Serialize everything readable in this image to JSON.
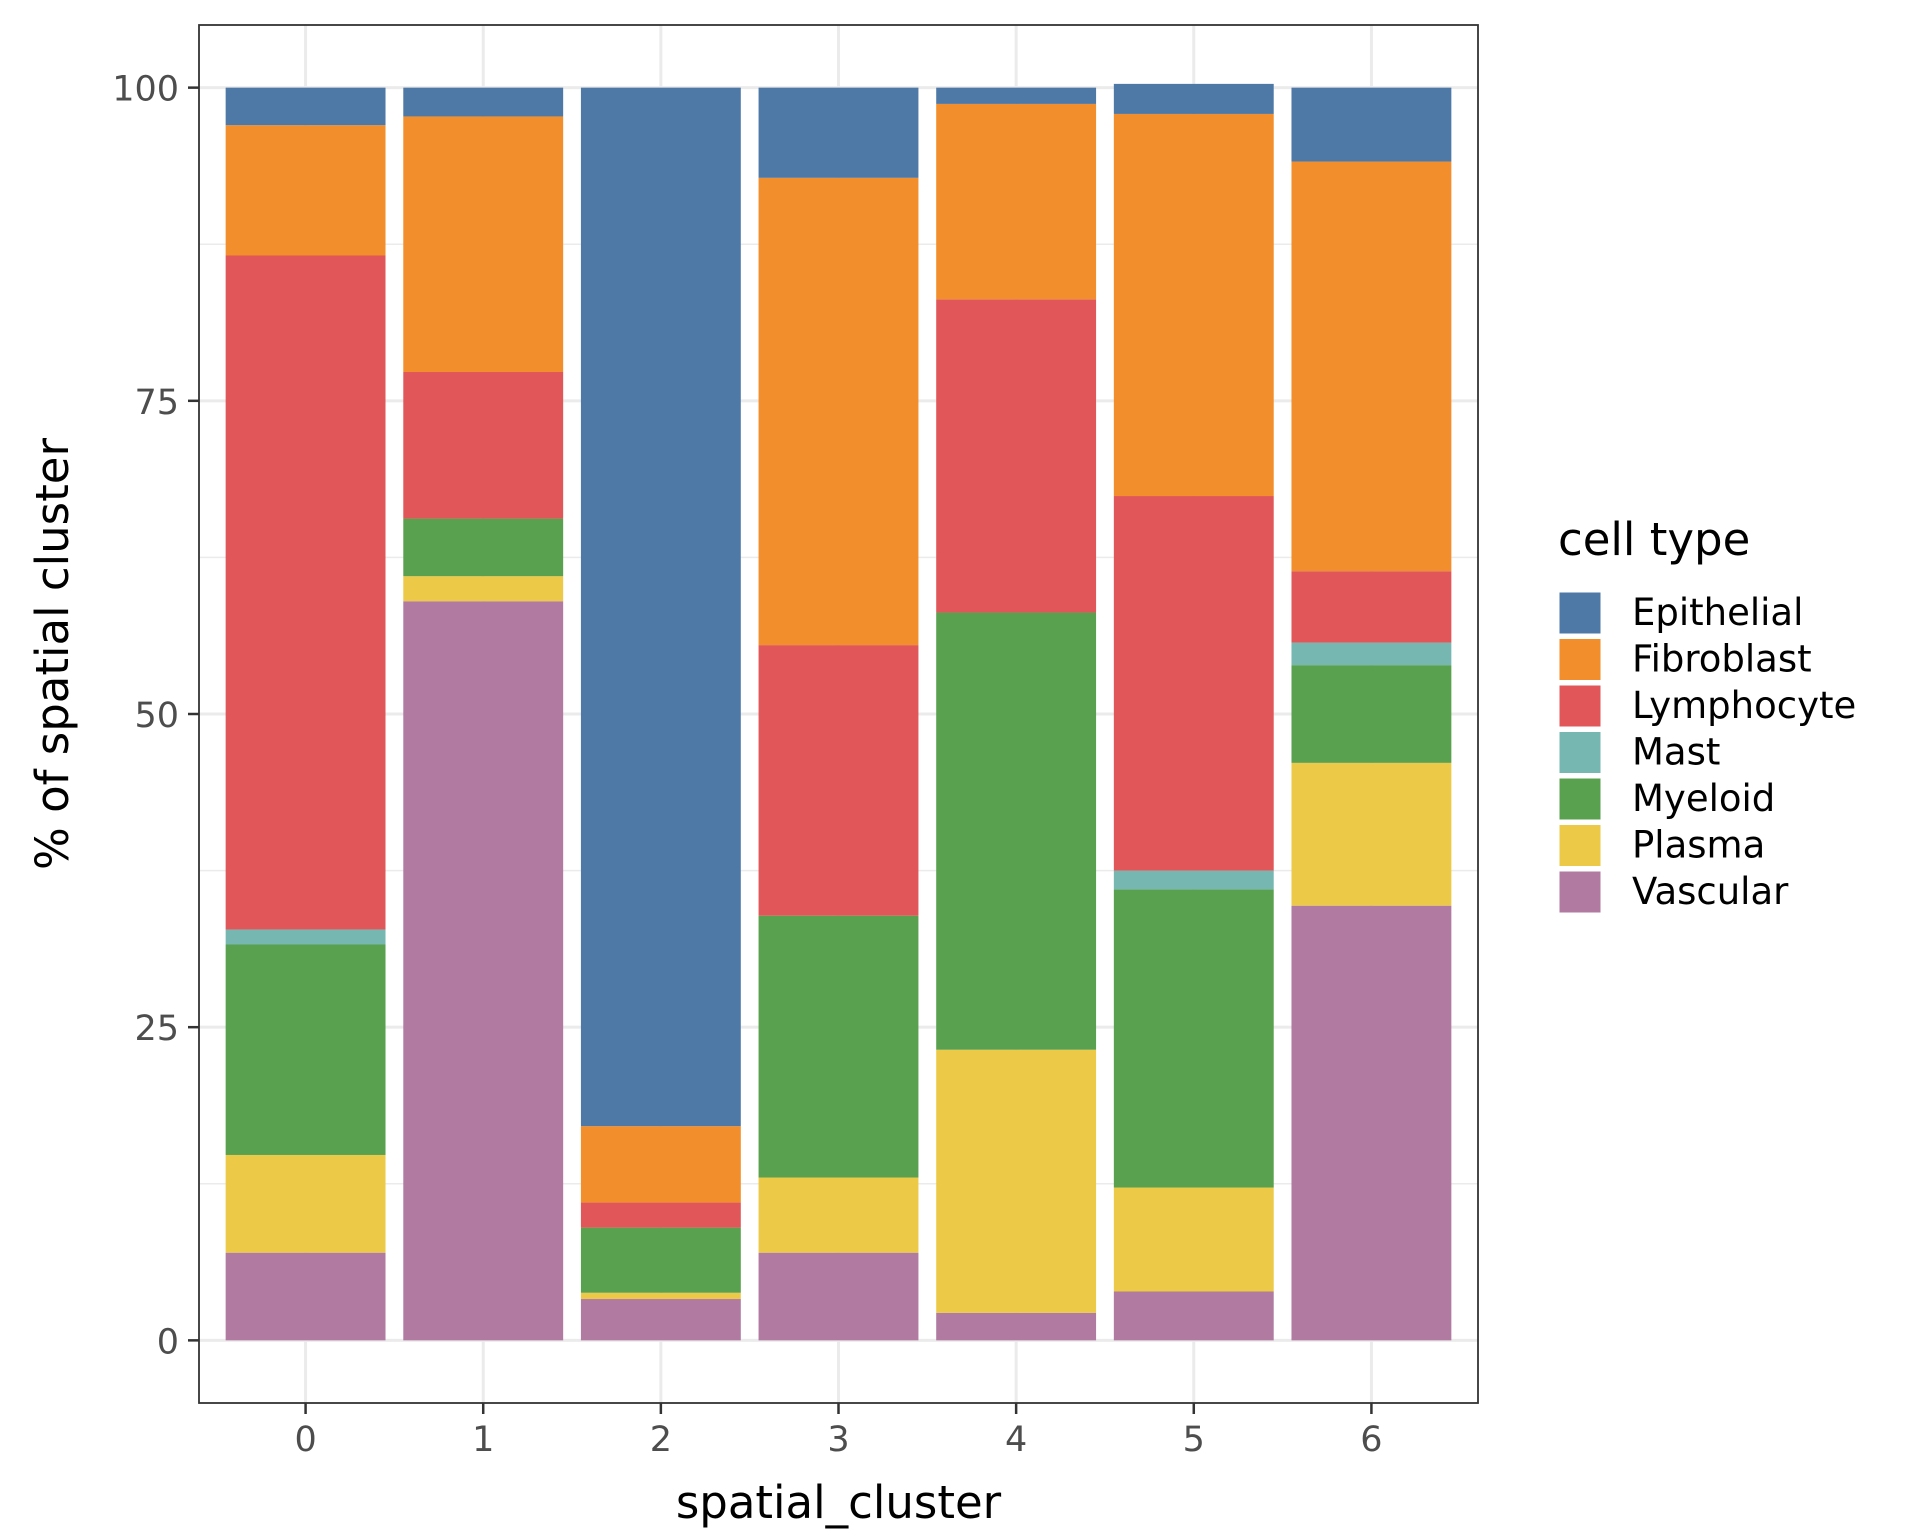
{
  "chart_data": {
    "type": "bar",
    "stacked": true,
    "categories": [
      "0",
      "1",
      "2",
      "3",
      "4",
      "5",
      "6"
    ],
    "xlabel": "spatial_cluster",
    "ylabel": "% of spatial cluster",
    "ylim": [
      -5,
      105
    ],
    "yticks": [
      0,
      25,
      50,
      75,
      100
    ],
    "grid": true,
    "legend": {
      "title": "cell type",
      "placement": "right"
    },
    "series": [
      {
        "name": "Vascular",
        "color": "#B07AA1",
        "values": [
          7.0,
          59.0,
          3.3,
          7.0,
          2.2,
          3.9,
          34.7
        ]
      },
      {
        "name": "Plasma",
        "color": "#EDC948",
        "values": [
          7.8,
          2.0,
          0.5,
          6.0,
          21.0,
          8.3,
          11.4
        ]
      },
      {
        "name": "Myeloid",
        "color": "#59A14F",
        "values": [
          16.8,
          4.6,
          5.2,
          20.9,
          34.9,
          23.8,
          7.8
        ]
      },
      {
        "name": "Mast",
        "color": "#76B7B2",
        "values": [
          1.2,
          0.0,
          0.0,
          0.0,
          0.0,
          1.5,
          1.8
        ]
      },
      {
        "name": "Lymphocyte",
        "color": "#E15759",
        "values": [
          53.8,
          11.7,
          2.0,
          21.6,
          25.0,
          29.9,
          5.7
        ]
      },
      {
        "name": "Fibroblast",
        "color": "#F28E2B",
        "values": [
          10.4,
          20.4,
          6.1,
          37.3,
          15.6,
          30.5,
          32.7
        ]
      },
      {
        "name": "Epithelial",
        "color": "#4E79A7",
        "values": [
          3.0,
          2.3,
          82.9,
          7.2,
          1.3,
          2.4,
          5.9
        ]
      }
    ],
    "legend_order": [
      "Epithelial",
      "Fibroblast",
      "Lymphocyte",
      "Mast",
      "Myeloid",
      "Plasma",
      "Vascular"
    ]
  }
}
